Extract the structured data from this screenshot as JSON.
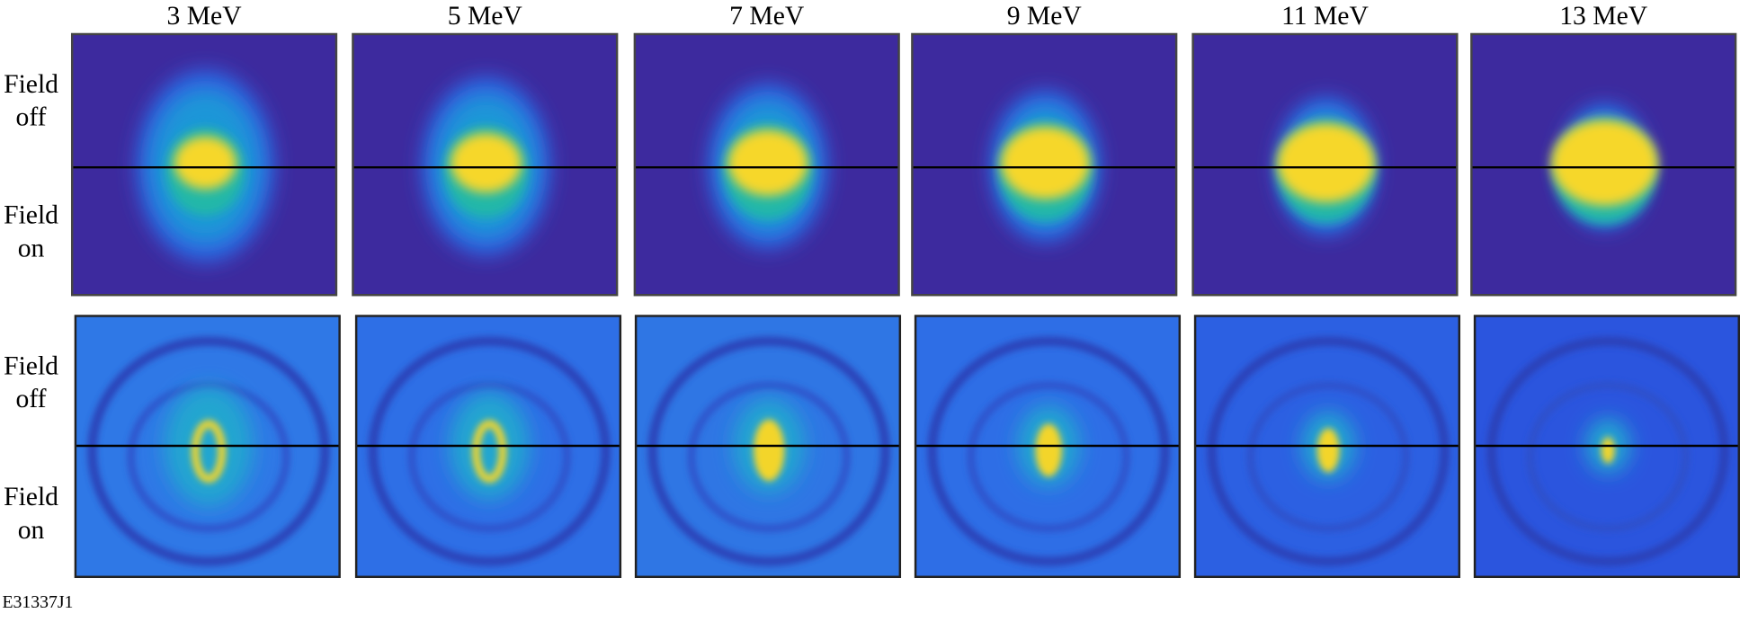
{
  "columns": [
    "3 MeV",
    "5 MeV",
    "7 MeV",
    "9 MeV",
    "11 MeV",
    "13 MeV"
  ],
  "rows": [
    {
      "top_label": [
        "Field",
        "off"
      ],
      "bottom_label": [
        "Field",
        "on"
      ]
    },
    {
      "top_label": [
        "Field",
        "off"
      ],
      "bottom_label": [
        "Field",
        "on"
      ]
    }
  ],
  "footer": "E31337J1"
}
